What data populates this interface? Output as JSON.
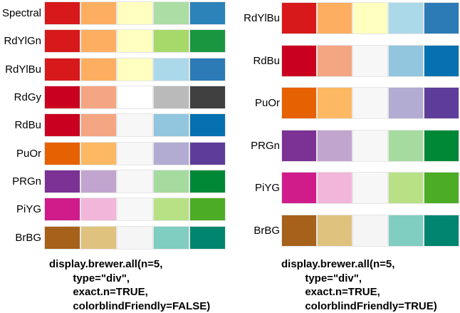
{
  "panels": [
    {
      "palettes": [
        {
          "name": "Spectral",
          "colors": [
            "#d7191c",
            "#fdae61",
            "#ffffbf",
            "#abdda4",
            "#2b83ba"
          ]
        },
        {
          "name": "RdYlGn",
          "colors": [
            "#d7191c",
            "#fdae61",
            "#ffffbf",
            "#a6d96a",
            "#1a9641"
          ]
        },
        {
          "name": "RdYlBu",
          "colors": [
            "#d7191c",
            "#fdae61",
            "#ffffbf",
            "#abd9e9",
            "#2c7bb6"
          ]
        },
        {
          "name": "RdGy",
          "colors": [
            "#ca0020",
            "#f4a582",
            "#ffffff",
            "#bababa",
            "#404040"
          ]
        },
        {
          "name": "RdBu",
          "colors": [
            "#ca0020",
            "#f4a582",
            "#f7f7f7",
            "#92c5de",
            "#0571b0"
          ]
        },
        {
          "name": "PuOr",
          "colors": [
            "#e66101",
            "#fdb863",
            "#f7f7f7",
            "#b2abd2",
            "#5e3c99"
          ]
        },
        {
          "name": "PRGn",
          "colors": [
            "#7b3294",
            "#c2a5cf",
            "#f7f7f7",
            "#a6dba0",
            "#008837"
          ]
        },
        {
          "name": "PiYG",
          "colors": [
            "#d01c8b",
            "#f1b6da",
            "#f7f7f7",
            "#b8e186",
            "#4dac26"
          ]
        },
        {
          "name": "BrBG",
          "colors": [
            "#a6611a",
            "#dfc27d",
            "#f5f5f5",
            "#80cdc1",
            "#018571"
          ]
        }
      ],
      "code": [
        "display.brewer.all(n=5,",
        "        type=\"div\",",
        "        exact.n=TRUE,",
        "        colorblindFriendly=FALSE)"
      ]
    },
    {
      "palettes": [
        {
          "name": "RdYlBu",
          "colors": [
            "#d7191c",
            "#fdae61",
            "#ffffbf",
            "#abd9e9",
            "#2c7bb6"
          ]
        },
        {
          "name": "RdBu",
          "colors": [
            "#ca0020",
            "#f4a582",
            "#f7f7f7",
            "#92c5de",
            "#0571b0"
          ]
        },
        {
          "name": "PuOr",
          "colors": [
            "#e66101",
            "#fdb863",
            "#f7f7f7",
            "#b2abd2",
            "#5e3c99"
          ]
        },
        {
          "name": "PRGn",
          "colors": [
            "#7b3294",
            "#c2a5cf",
            "#f7f7f7",
            "#a6dba0",
            "#008837"
          ]
        },
        {
          "name": "PiYG",
          "colors": [
            "#d01c8b",
            "#f1b6da",
            "#f7f7f7",
            "#b8e186",
            "#4dac26"
          ]
        },
        {
          "name": "BrBG",
          "colors": [
            "#a6611a",
            "#dfc27d",
            "#f5f5f5",
            "#80cdc1",
            "#018571"
          ]
        }
      ],
      "code": [
        "display.brewer.all(n=5,",
        "        type=\"div\",",
        "        exact.n=TRUE,",
        "        colorblindFriendly=TRUE)"
      ]
    }
  ]
}
